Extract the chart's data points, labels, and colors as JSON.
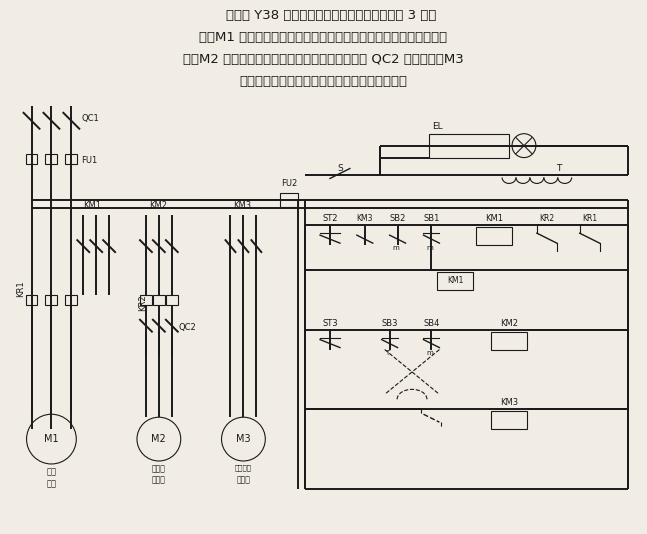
{
  "bg_color": "#f2ede4",
  "line_color": "#1a1a1a",
  "text_color": "#1a1a1a",
  "lw_main": 1.4,
  "lw_ctrl": 1.0,
  "lw_thin": 0.8,
  "top_lines": [
    "    所示为 Y38 型滚齿机电气原理图。主电路中有 3 台电",
    "机，M1 为主电机，为典型的带热继电器过载保护的单向起动控制线",
    "路；M2 为冷却泵电机，随主电机起动后，用开关 QC2 进行操作；M3",
    "为快速行程电动机，由可逆点动控制线路组成。"
  ]
}
